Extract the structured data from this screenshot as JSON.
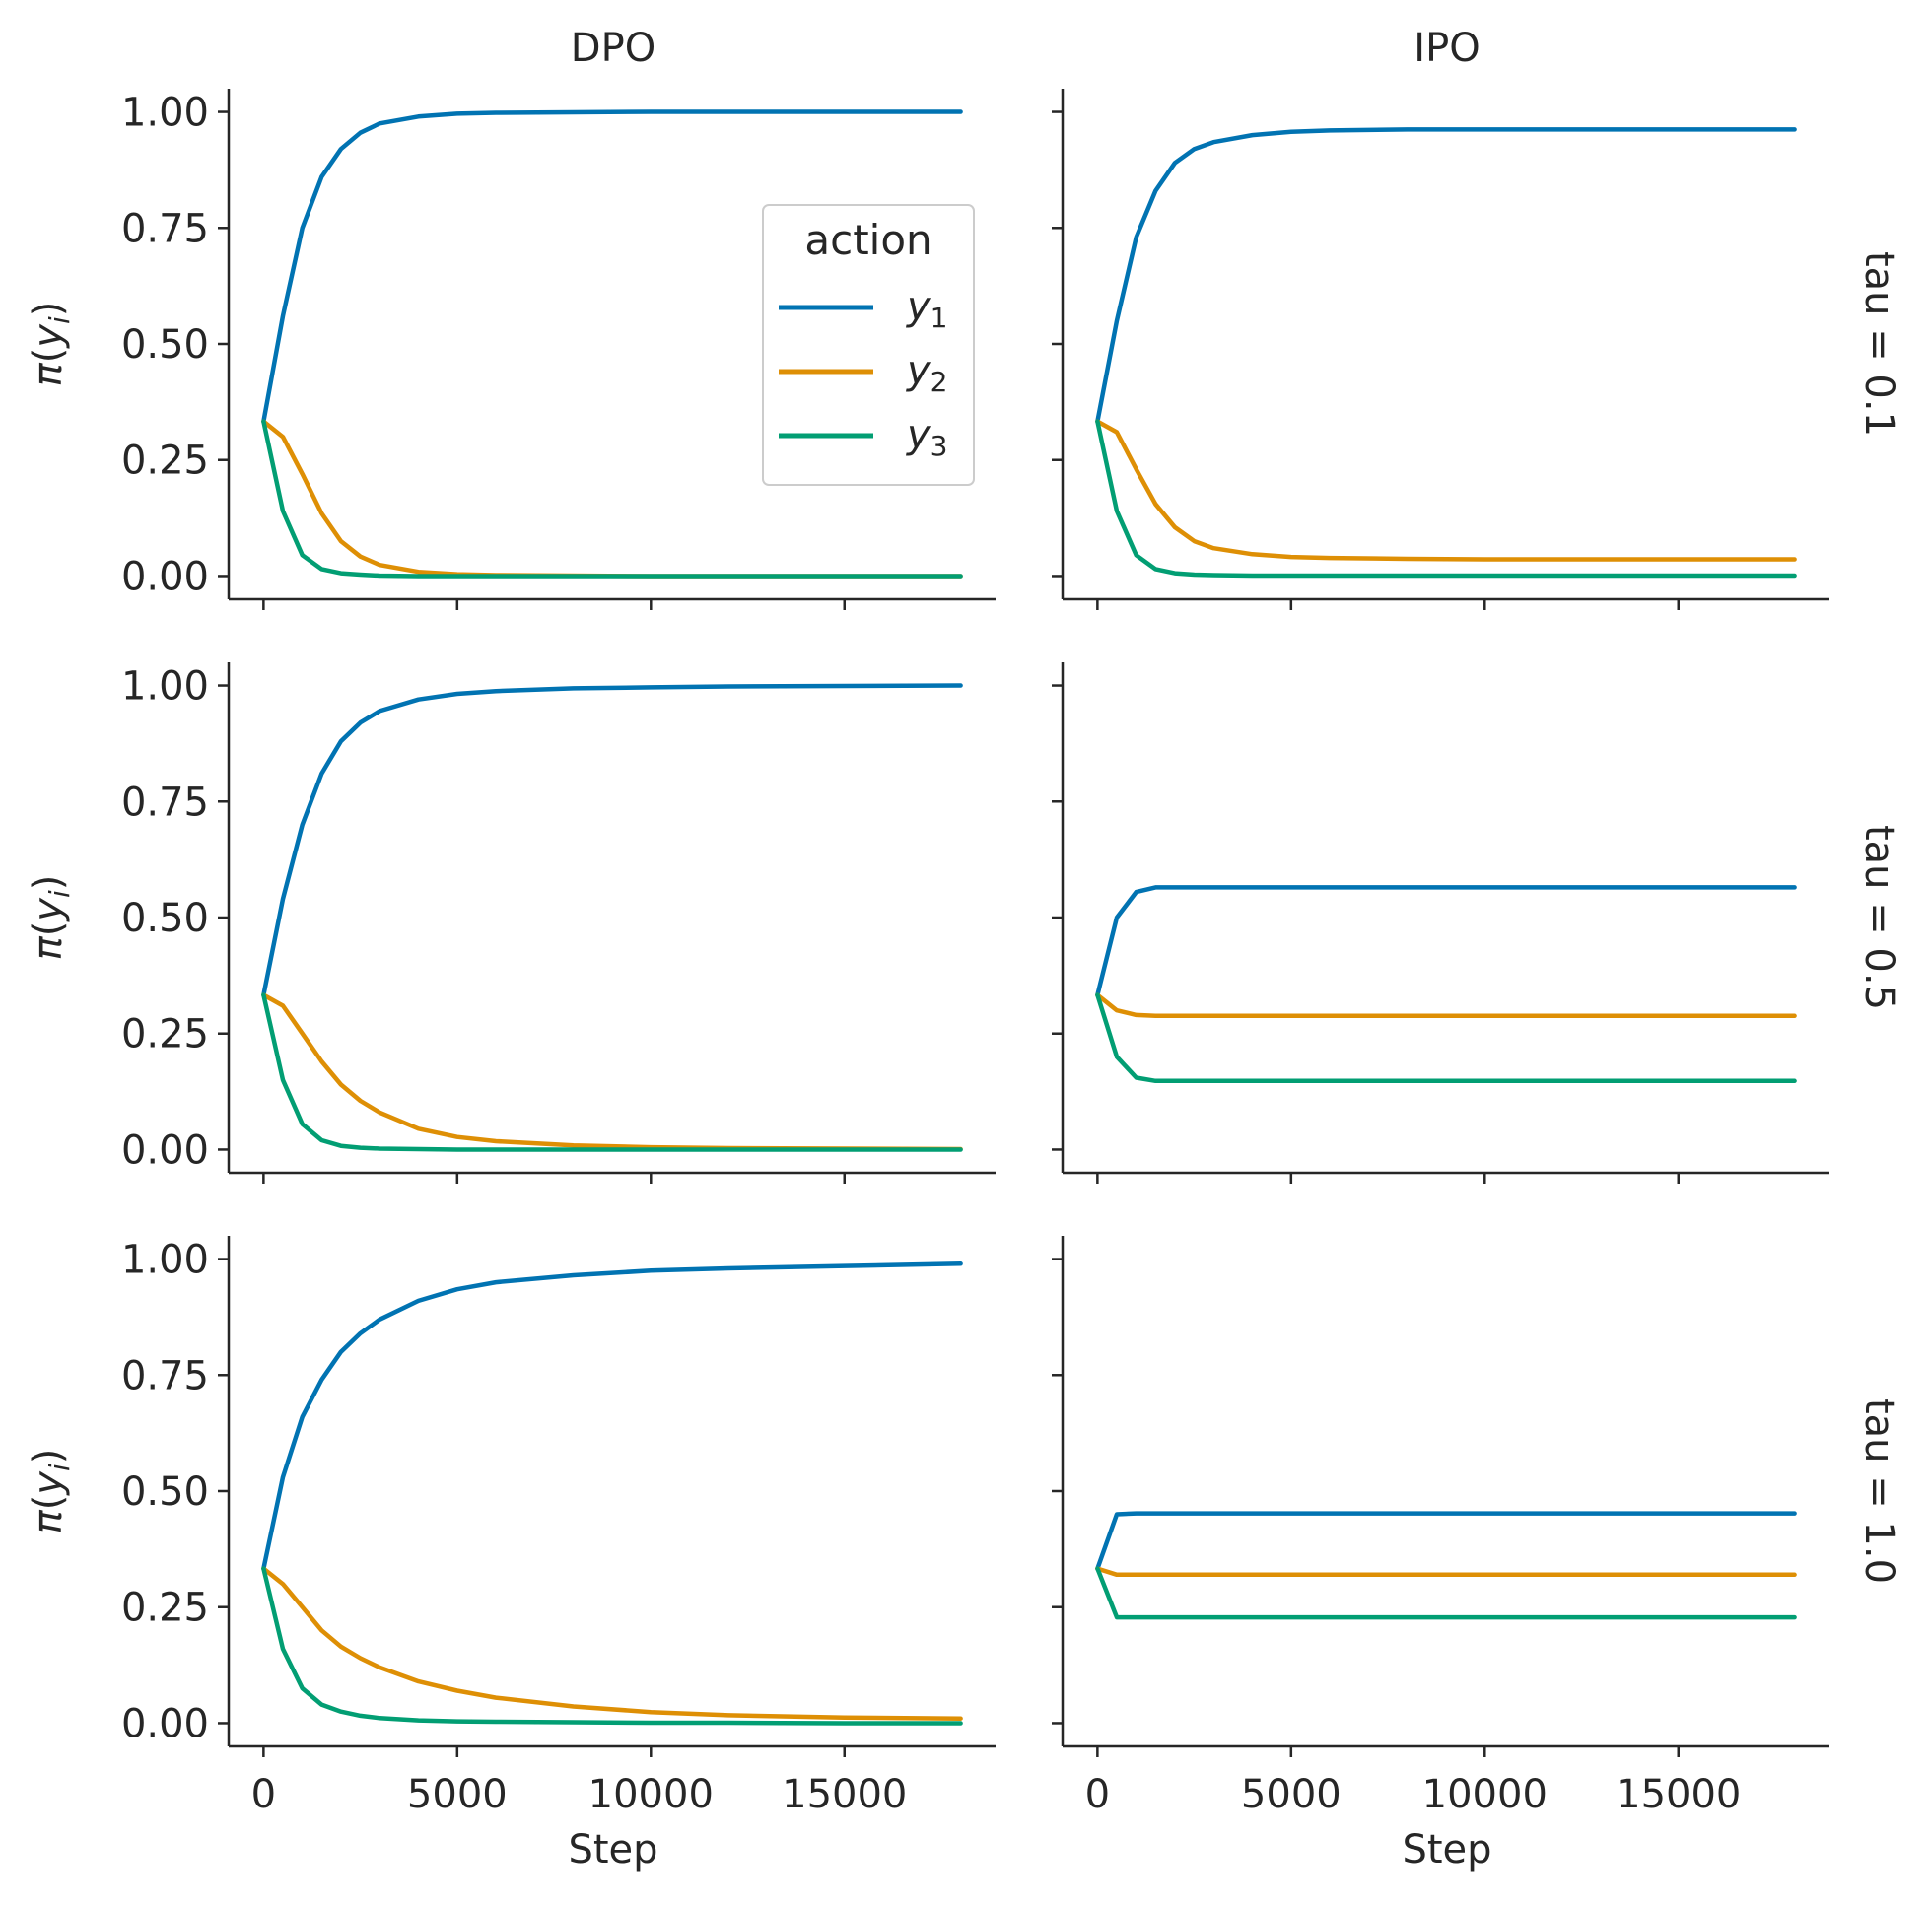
{
  "chart_data": {
    "type": "line",
    "layout": "facet grid: rows = tau, columns = method",
    "columns": [
      "DPO",
      "IPO"
    ],
    "rows": [
      "tau = 0.1",
      "tau = 0.5",
      "tau = 1.0"
    ],
    "xlabel": "Step",
    "ylabel": "π(y_i)",
    "xlim": [
      -900,
      18900
    ],
    "ylim": [
      -0.05,
      1.05
    ],
    "xticks": [
      "0",
      "5000",
      "10000",
      "15000"
    ],
    "yticks": [
      "0.00",
      "0.25",
      "0.50",
      "0.75",
      "1.00"
    ],
    "grid": false,
    "legend": {
      "title": "action",
      "placement": "inside top-left panel, upper right",
      "entries": [
        {
          "base": "y",
          "sub": "1",
          "color": "#0173b2"
        },
        {
          "base": "y",
          "sub": "2",
          "color": "#de8f05"
        },
        {
          "base": "y",
          "sub": "3",
          "color": "#029e73"
        }
      ]
    },
    "x": [
      0,
      500,
      1000,
      1500,
      2000,
      2500,
      3000,
      4000,
      5000,
      6000,
      8000,
      10000,
      12000,
      15000,
      18000
    ],
    "panels": [
      {
        "row": "tau = 0.1",
        "column": "DPO",
        "series": [
          {
            "color": "#0173b2",
            "values": [
              0.333,
              0.56,
              0.75,
              0.86,
              0.92,
              0.955,
              0.975,
              0.99,
              0.996,
              0.998,
              0.999,
              1.0,
              1.0,
              1.0,
              1.0
            ]
          },
          {
            "color": "#de8f05",
            "values": [
              0.333,
              0.3,
              0.22,
              0.135,
              0.075,
              0.042,
              0.024,
              0.009,
              0.004,
              0.002,
              0.001,
              0.0,
              0.0,
              0.0,
              0.0
            ]
          },
          {
            "color": "#029e73",
            "values": [
              0.333,
              0.14,
              0.045,
              0.015,
              0.006,
              0.003,
              0.001,
              0.0,
              0.0,
              0.0,
              0.0,
              0.0,
              0.0,
              0.0,
              0.0
            ]
          }
        ]
      },
      {
        "row": "tau = 0.1",
        "column": "IPO",
        "series": [
          {
            "color": "#0173b2",
            "values": [
              0.333,
              0.55,
              0.73,
              0.83,
              0.89,
              0.92,
              0.935,
              0.95,
              0.957,
              0.96,
              0.962,
              0.962,
              0.962,
              0.962,
              0.962
            ]
          },
          {
            "color": "#de8f05",
            "values": [
              0.333,
              0.31,
              0.23,
              0.155,
              0.105,
              0.075,
              0.06,
              0.047,
              0.041,
              0.039,
              0.037,
              0.036,
              0.036,
              0.036,
              0.036
            ]
          },
          {
            "color": "#029e73",
            "values": [
              0.333,
              0.14,
              0.045,
              0.015,
              0.006,
              0.003,
              0.002,
              0.001,
              0.001,
              0.001,
              0.001,
              0.001,
              0.001,
              0.001,
              0.001
            ]
          }
        ]
      },
      {
        "row": "tau = 0.5",
        "column": "DPO",
        "series": [
          {
            "color": "#0173b2",
            "values": [
              0.333,
              0.54,
              0.7,
              0.81,
              0.88,
              0.92,
              0.945,
              0.97,
              0.982,
              0.988,
              0.994,
              0.996,
              0.998,
              0.999,
              1.0
            ]
          },
          {
            "color": "#de8f05",
            "values": [
              0.333,
              0.31,
              0.25,
              0.19,
              0.14,
              0.105,
              0.08,
              0.045,
              0.027,
              0.018,
              0.009,
              0.005,
              0.003,
              0.002,
              0.001
            ]
          },
          {
            "color": "#029e73",
            "values": [
              0.333,
              0.15,
              0.055,
              0.02,
              0.008,
              0.004,
              0.002,
              0.001,
              0.0,
              0.0,
              0.0,
              0.0,
              0.0,
              0.0,
              0.0
            ]
          }
        ]
      },
      {
        "row": "tau = 0.5",
        "column": "IPO",
        "series": [
          {
            "color": "#0173b2",
            "values": [
              0.333,
              0.5,
              0.555,
              0.565,
              0.565,
              0.565,
              0.565,
              0.565,
              0.565,
              0.565,
              0.565,
              0.565,
              0.565,
              0.565,
              0.565
            ]
          },
          {
            "color": "#de8f05",
            "values": [
              0.333,
              0.3,
              0.29,
              0.288,
              0.288,
              0.288,
              0.288,
              0.288,
              0.288,
              0.288,
              0.288,
              0.288,
              0.288,
              0.288,
              0.288
            ]
          },
          {
            "color": "#029e73",
            "values": [
              0.333,
              0.2,
              0.155,
              0.148,
              0.148,
              0.148,
              0.148,
              0.148,
              0.148,
              0.148,
              0.148,
              0.148,
              0.148,
              0.148,
              0.148
            ]
          }
        ]
      },
      {
        "row": "tau = 1.0",
        "column": "DPO",
        "series": [
          {
            "color": "#0173b2",
            "values": [
              0.333,
              0.53,
              0.66,
              0.74,
              0.8,
              0.84,
              0.87,
              0.91,
              0.935,
              0.95,
              0.965,
              0.975,
              0.98,
              0.985,
              0.99
            ]
          },
          {
            "color": "#de8f05",
            "values": [
              0.333,
              0.3,
              0.25,
              0.2,
              0.165,
              0.14,
              0.12,
              0.09,
              0.07,
              0.055,
              0.036,
              0.024,
              0.017,
              0.012,
              0.01
            ]
          },
          {
            "color": "#029e73",
            "values": [
              0.333,
              0.16,
              0.075,
              0.04,
              0.025,
              0.016,
              0.011,
              0.006,
              0.004,
              0.003,
              0.002,
              0.001,
              0.001,
              0.0,
              0.0
            ]
          }
        ]
      },
      {
        "row": "tau = 1.0",
        "column": "IPO",
        "series": [
          {
            "color": "#0173b2",
            "values": [
              0.333,
              0.45,
              0.452,
              0.452,
              0.452,
              0.452,
              0.452,
              0.452,
              0.452,
              0.452,
              0.452,
              0.452,
              0.452,
              0.452,
              0.452
            ]
          },
          {
            "color": "#de8f05",
            "values": [
              0.333,
              0.32,
              0.32,
              0.32,
              0.32,
              0.32,
              0.32,
              0.32,
              0.32,
              0.32,
              0.32,
              0.32,
              0.32,
              0.32,
              0.32
            ]
          },
          {
            "color": "#029e73",
            "values": [
              0.333,
              0.228,
              0.228,
              0.228,
              0.228,
              0.228,
              0.228,
              0.228,
              0.228,
              0.228,
              0.228,
              0.228,
              0.228,
              0.228,
              0.228
            ]
          }
        ]
      }
    ]
  }
}
